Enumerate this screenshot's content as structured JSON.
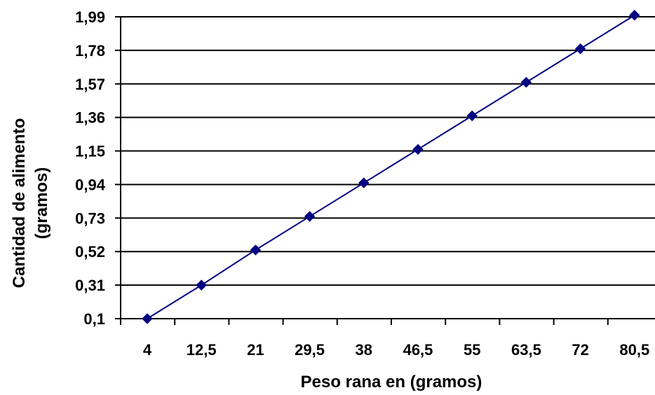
{
  "chart_data": {
    "type": "line",
    "title": "",
    "xlabel": "Peso rana en (gramos)",
    "ylabel_lines": [
      "Cantidad de alimento",
      "(gramos)"
    ],
    "categories": [
      "4",
      "12,5",
      "21",
      "29,5",
      "38",
      "46,5",
      "55",
      "63,5",
      "72",
      "80,5"
    ],
    "y_tick_labels": [
      "0,1",
      "0,31",
      "0,52",
      "0,73",
      "0,94",
      "1,15",
      "1,36",
      "1,57",
      "1,78",
      "1,99"
    ],
    "ylim": [
      0.1,
      1.99
    ],
    "grid": true,
    "legend": "none",
    "series": [
      {
        "values": [
          0.1,
          0.31,
          0.53,
          0.74,
          0.95,
          1.16,
          1.37,
          1.58,
          1.79,
          2.0
        ]
      }
    ],
    "colors": {
      "series": "#000080",
      "grid": "#000000",
      "axis": "#000000"
    }
  }
}
